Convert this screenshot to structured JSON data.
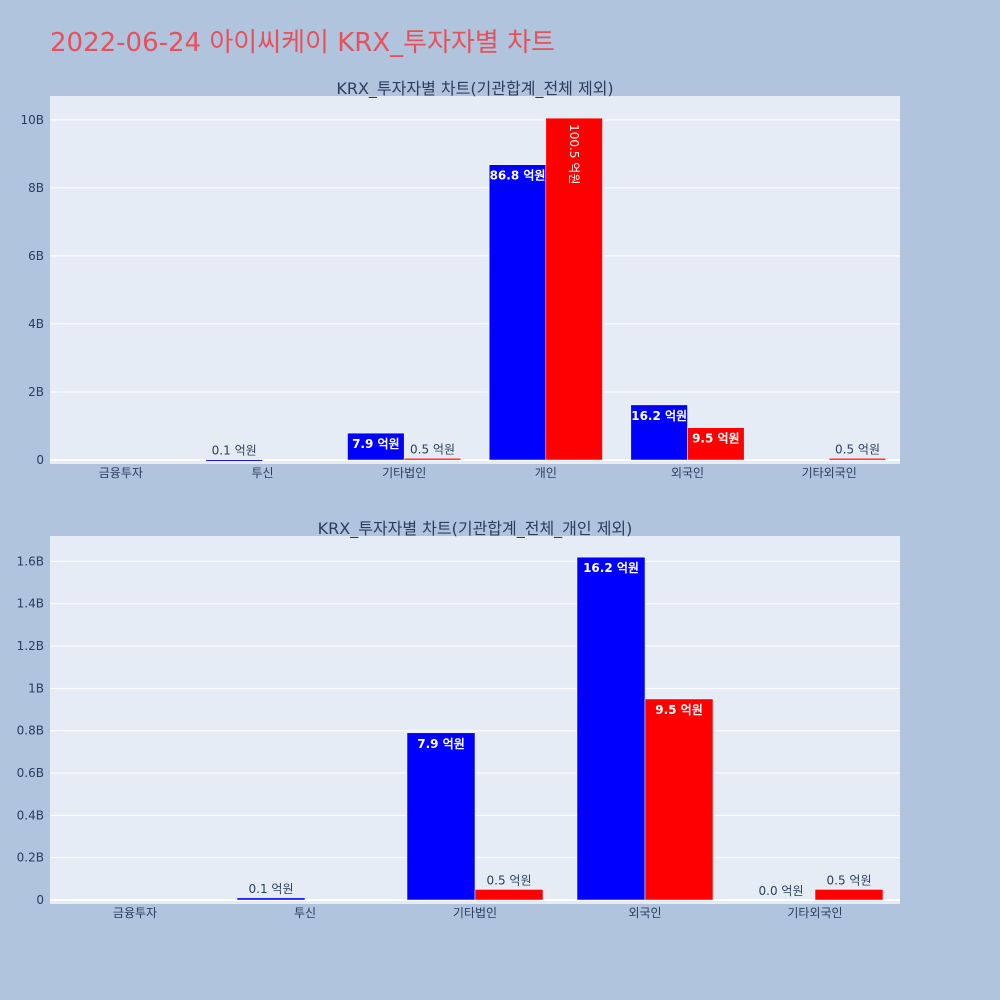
{
  "title": "2022-06-24 아이씨케이 KRX_투자자별 차트",
  "colors": {
    "buy": "#0000ff",
    "sell": "#ff0000",
    "page_bg": "#b0c4de",
    "plot_bg": "#e5ecf6",
    "title": "#e8505b"
  },
  "chart_data": [
    {
      "type": "bar",
      "title": "KRX_투자자별 차트(기관합계_전체 제외)",
      "categories": [
        "금융투자",
        "투신",
        "기타법인",
        "개인",
        "외국인",
        "기타외국인"
      ],
      "series": [
        {
          "values": [
            0,
            10000000,
            790000000,
            8680000000,
            1620000000,
            0
          ],
          "labels": [
            "",
            "0.1 억원",
            "7.9 억원",
            "86.8 억원",
            "16.2 억원",
            ""
          ]
        },
        {
          "values": [
            0,
            0,
            50000000,
            10050000000,
            950000000,
            50000000
          ],
          "labels": [
            "",
            "",
            "0.5 억원",
            "100.5 억원",
            "9.5 억원",
            "0.5 억원"
          ]
        }
      ],
      "ylim": [
        0,
        10700000000
      ],
      "yticks": [
        0,
        2000000000,
        4000000000,
        6000000000,
        8000000000,
        10000000000
      ],
      "ytick_labels": [
        "0",
        "2B",
        "4B",
        "6B",
        "8B",
        "10B"
      ],
      "grid": true
    },
    {
      "type": "bar",
      "title": "KRX_투자자별 차트(기관합계_전체_개인 제외)",
      "categories": [
        "금융투자",
        "투신",
        "기타법인",
        "외국인",
        "기타외국인"
      ],
      "series": [
        {
          "values": [
            0,
            10000000,
            790000000,
            1620000000,
            0
          ],
          "labels": [
            "",
            "0.1 억원",
            "7.9 억원",
            "16.2 억원",
            "0.0 억원"
          ]
        },
        {
          "values": [
            0,
            0,
            50000000,
            950000000,
            50000000
          ],
          "labels": [
            "",
            "",
            "0.5 억원",
            "9.5 억원",
            "0.5 억원"
          ]
        }
      ],
      "ylim": [
        0,
        1720000000
      ],
      "yticks": [
        0,
        200000000,
        400000000,
        600000000,
        800000000,
        1000000000,
        1200000000,
        1400000000,
        1600000000
      ],
      "ytick_labels": [
        "0",
        "0.2B",
        "0.4B",
        "0.6B",
        "0.8B",
        "1B",
        "1.2B",
        "1.4B",
        "1.6B"
      ],
      "grid": true
    }
  ]
}
